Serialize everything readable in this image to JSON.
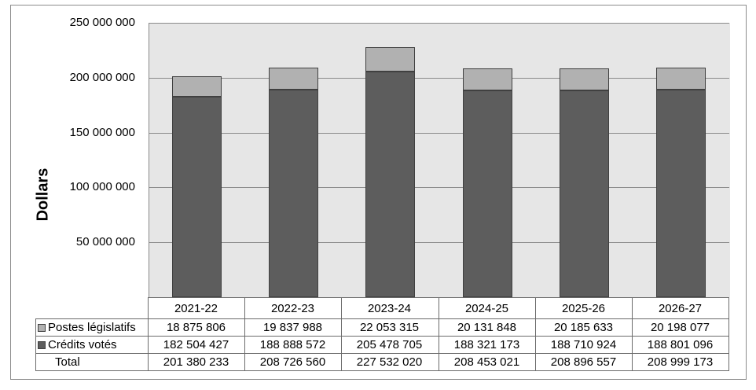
{
  "axis": {
    "y_title": "Dollars",
    "tick_labels": [
      "250 000 000",
      "200 000 000",
      "150 000 000",
      "100 000 000",
      "50 000 000"
    ]
  },
  "chart_data": {
    "type": "bar",
    "stacked": true,
    "title": "",
    "xlabel": "",
    "ylabel": "Dollars",
    "ylim": [
      0,
      250000000
    ],
    "y_tick_step": 50000000,
    "grid": true,
    "legend_position": "data-table-left-column",
    "categories": [
      "2021-22",
      "2022-23",
      "2023-24",
      "2024-25",
      "2025-26",
      "2026-27"
    ],
    "series": [
      {
        "name": "Crédits votés",
        "color": "#5d5d5d",
        "values": [
          182504427,
          188888572,
          205478705,
          188321173,
          188710924,
          188801096
        ]
      },
      {
        "name": "Postes législatifs",
        "color": "#b1b1b1",
        "values": [
          18875806,
          19837988,
          22053315,
          20131848,
          20185633,
          20198077
        ]
      }
    ],
    "totals": [
      201380233,
      208726560,
      227532020,
      208453021,
      208896557,
      208999173
    ]
  },
  "table": {
    "rows": [
      {
        "label": "Postes législatifs",
        "key_color": "#b1b1b1",
        "values": [
          "18 875 806",
          "19 837 988",
          "22 053 315",
          "20 131 848",
          "20 185 633",
          "20 198 077"
        ]
      },
      {
        "label": "Crédits votés",
        "key_color": "#5d5d5d",
        "values": [
          "182 504 427",
          "188 888 572",
          "205 478 705",
          "188 321 173",
          "188 710 924",
          "188 801 096"
        ]
      },
      {
        "label": "Total",
        "key_color": null,
        "values": [
          "201 380 233",
          "208 726 560",
          "227 532 020",
          "208 453 021",
          "208 896 557",
          "208 999 173"
        ]
      }
    ]
  }
}
